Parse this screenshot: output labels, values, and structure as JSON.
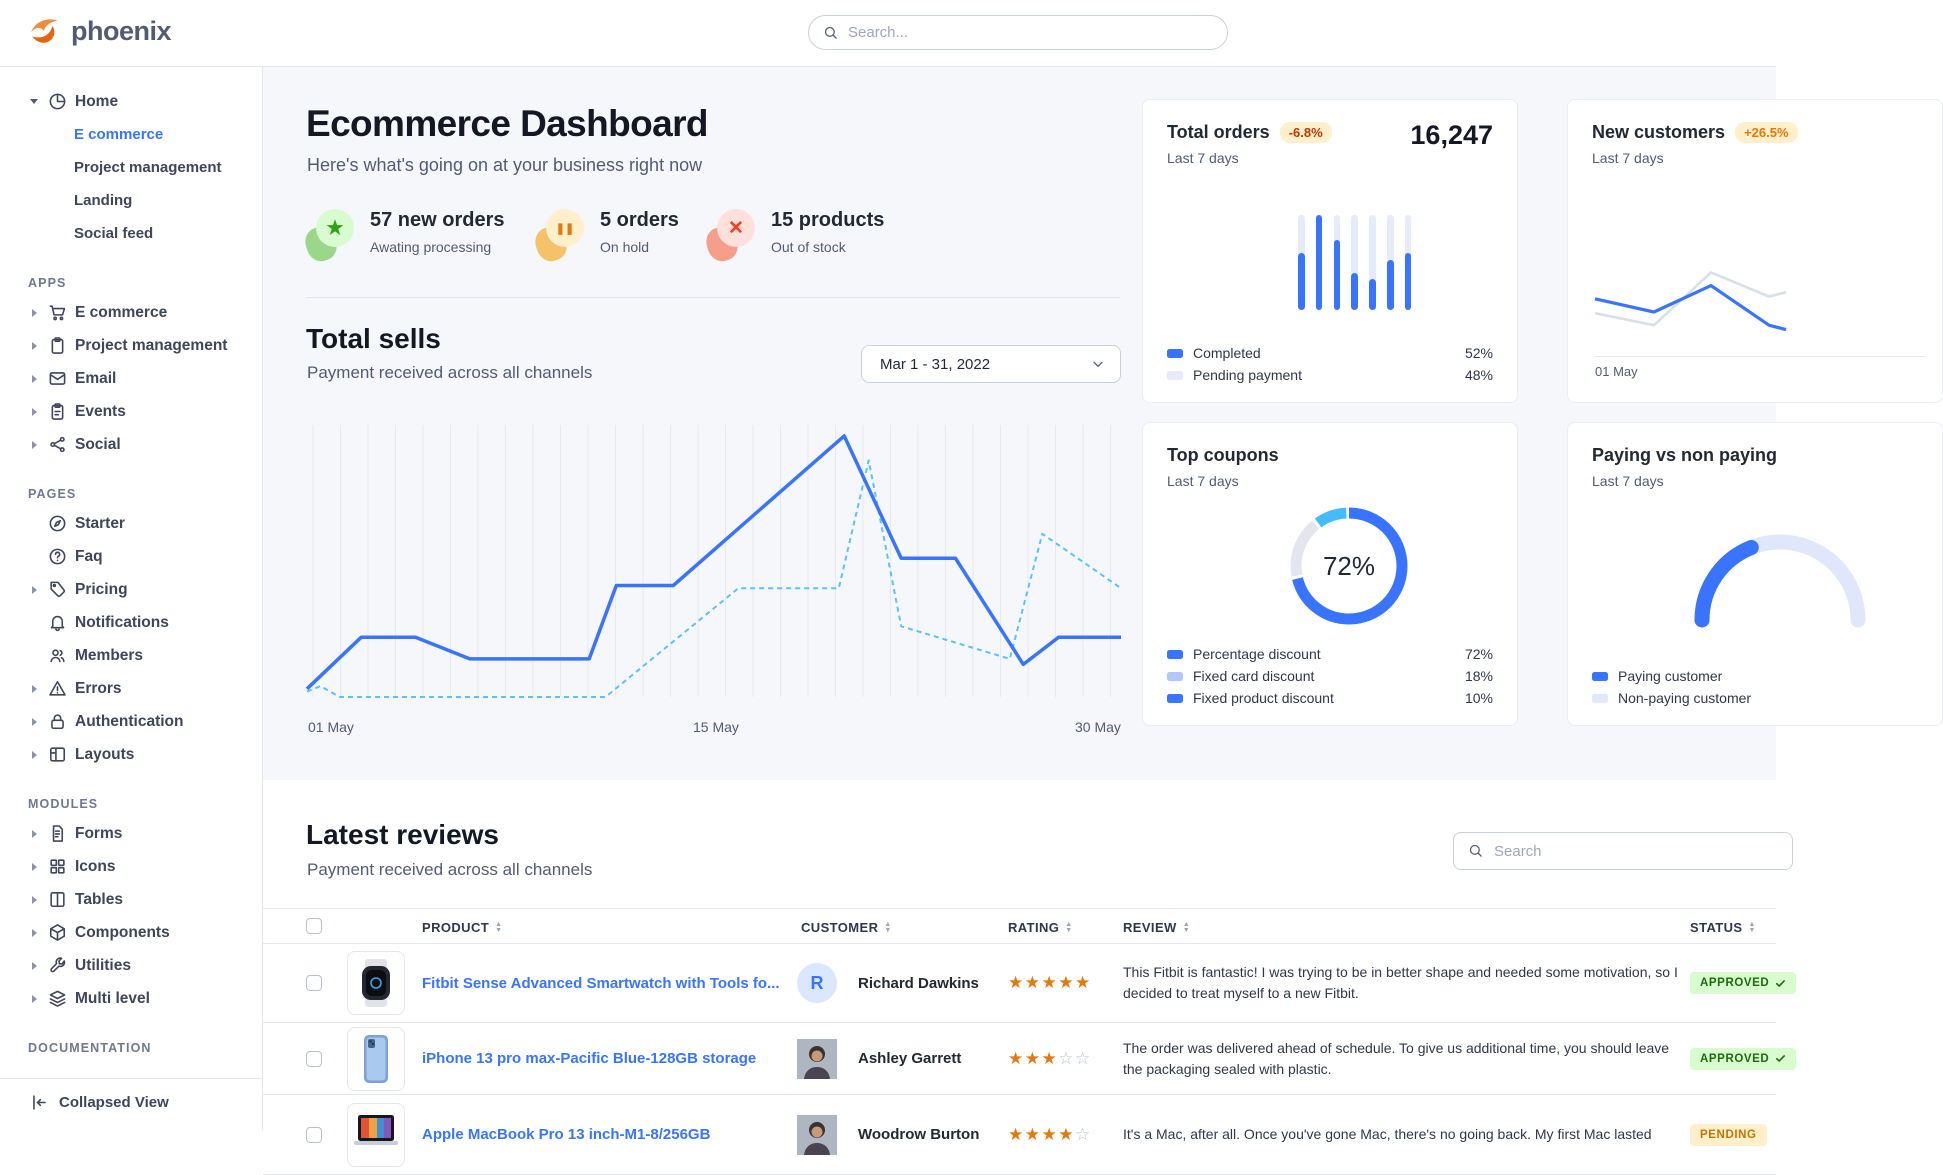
{
  "navbar": {
    "brand": "phoenix",
    "search_placeholder": "Search..."
  },
  "sidebar": {
    "home": {
      "label": "Home",
      "icon": "pie-icon",
      "subs": [
        {
          "label": "E commerce",
          "active": true
        },
        {
          "label": "Project management",
          "active": false
        },
        {
          "label": "Landing",
          "active": false
        },
        {
          "label": "Social feed",
          "active": false
        }
      ]
    },
    "sections": [
      {
        "label": "APPS",
        "items": [
          {
            "label": "E commerce",
            "icon": "cart-icon",
            "caret": true
          },
          {
            "label": "Project management",
            "icon": "clipboard-icon",
            "caret": true
          },
          {
            "label": "Email",
            "icon": "envelope-icon",
            "caret": true
          },
          {
            "label": "Events",
            "icon": "calendar-icon",
            "caret": true
          },
          {
            "label": "Social",
            "icon": "share-icon",
            "caret": true
          }
        ]
      },
      {
        "label": "PAGES",
        "items": [
          {
            "label": "Starter",
            "icon": "compass-icon",
            "caret": false
          },
          {
            "label": "Faq",
            "icon": "question-icon",
            "caret": false
          },
          {
            "label": "Pricing",
            "icon": "tag-icon",
            "caret": true
          },
          {
            "label": "Notifications",
            "icon": "bell-icon",
            "caret": false
          },
          {
            "label": "Members",
            "icon": "members-icon",
            "caret": false
          },
          {
            "label": "Errors",
            "icon": "warning-icon",
            "caret": true
          },
          {
            "label": "Authentication",
            "icon": "lock-icon",
            "caret": true
          },
          {
            "label": "Layouts",
            "icon": "layout-icon",
            "caret": true
          }
        ]
      },
      {
        "label": "MODULES",
        "items": [
          {
            "label": "Forms",
            "icon": "form-icon",
            "caret": true
          },
          {
            "label": "Icons",
            "icon": "grid-icon",
            "caret": true
          },
          {
            "label": "Tables",
            "icon": "table-icon",
            "caret": true
          },
          {
            "label": "Components",
            "icon": "box-icon",
            "caret": true
          },
          {
            "label": "Utilities",
            "icon": "wrench-icon",
            "caret": true
          },
          {
            "label": "Multi level",
            "icon": "layers-icon",
            "caret": true
          }
        ]
      },
      {
        "label": "DOCUMENTATION",
        "items": []
      }
    ],
    "footer": {
      "label": "Collapsed View",
      "icon": "collapse-icon"
    }
  },
  "hero": {
    "title": "Ecommerce Dashboard",
    "subtitle": "Here's what's going on at your business right now",
    "stats": [
      {
        "text": "57 new orders",
        "sub": "Awating processing",
        "kind": "new",
        "glyph": "star",
        "blob": "#9bd78a",
        "circle": "#d9fbd0",
        "glyph_color": "#31a212"
      },
      {
        "text": "5 orders",
        "sub": "On hold",
        "kind": "hold",
        "glyph": "pause",
        "blob": "#f5c26b",
        "circle": "#ffefca",
        "glyph_color": "#e5780b"
      },
      {
        "text": "15 products",
        "sub": "Out of stock",
        "kind": "stock",
        "glyph": "x",
        "blob": "#f59e8b",
        "circle": "#ffe0db",
        "glyph_color": "#fa3b1d"
      }
    ]
  },
  "total_sells": {
    "title": "Total sells",
    "subtitle": "Payment received across all channels",
    "date_range": "Mar 1 - 31, 2022"
  },
  "cards": {
    "total_orders": {
      "title": "Total orders",
      "badge": "-6.8%",
      "period": "Last 7 days",
      "value": "16,247"
    },
    "new_customers": {
      "title": "New customers",
      "badge": "+26.5%",
      "period": "Last 7 days",
      "x_tick": "01 May"
    },
    "top_coupons": {
      "title": "Top coupons",
      "period": "Last 7 days",
      "center_value": "72%"
    },
    "paying": {
      "title": "Paying vs non paying",
      "period": "Last 7 days"
    }
  },
  "chart_data": [
    {
      "id": "total-sells",
      "type": "line",
      "title": "Total sells",
      "x_ticks": [
        "01 May",
        "15 May",
        "30 May"
      ],
      "x_range_days": [
        1,
        31
      ],
      "ylim": [
        0,
        100
      ],
      "grid": "vertical-only",
      "legend": "none",
      "series": [
        {
          "name": "current",
          "style": "solid",
          "color": "#3874ff",
          "points": [
            [
              1,
              3
            ],
            [
              3,
              22
            ],
            [
              5,
              22
            ],
            [
              7,
              14
            ],
            [
              11.4,
              14
            ],
            [
              12.4,
              41
            ],
            [
              14.5,
              41
            ],
            [
              20.8,
              96
            ],
            [
              22.9,
              51
            ],
            [
              24.9,
              51
            ],
            [
              27.4,
              12
            ],
            [
              28.7,
              22
            ],
            [
              31,
              22
            ]
          ]
        },
        {
          "name": "previous",
          "style": "dashed",
          "color": "#5bc2fc",
          "points": [
            [
              1,
              2
            ],
            [
              1.5,
              4
            ],
            [
              2.2,
              0
            ],
            [
              12,
              0
            ],
            [
              16.9,
              40
            ],
            [
              20.6,
              40
            ],
            [
              21.7,
              87
            ],
            [
              22.9,
              26
            ],
            [
              26.9,
              14
            ],
            [
              28.1,
              60
            ],
            [
              31,
              40
            ]
          ]
        }
      ]
    },
    {
      "id": "total-orders",
      "type": "bar",
      "title": "Total orders",
      "values_pct_of_max": [
        60,
        100,
        74,
        39,
        33,
        53,
        60
      ],
      "legend": [
        {
          "label": "Completed",
          "value": "52%",
          "color": "#3874ff"
        },
        {
          "label": "Pending payment",
          "value": "48%",
          "color": "#e6ebfb"
        }
      ]
    },
    {
      "id": "new-customers",
      "type": "line",
      "title": "New customers",
      "x_tick": "01 May",
      "series": [
        {
          "name": "previous",
          "color": "#d8dfea",
          "values": [
            39,
            28,
            76,
            54,
            58
          ]
        },
        {
          "name": "current",
          "color": "#3874ff",
          "values": [
            52,
            40,
            64,
            28,
            24
          ]
        }
      ]
    },
    {
      "id": "top-coupons",
      "type": "donut",
      "title": "Top coupons",
      "center": "72%",
      "slices": [
        {
          "label": "Percentage discount",
          "value": 72,
          "arc_color": "#3874ff",
          "legend_color": "#3874ff"
        },
        {
          "label": "Fixed card discount",
          "value": 18,
          "arc_color": "#e3e6ed",
          "legend_color": "#b1c7ff"
        },
        {
          "label": "Fixed product discount",
          "value": 10,
          "arc_color": "#45bcf9",
          "legend_color": "#3874ff"
        }
      ]
    },
    {
      "id": "paying-gauge",
      "type": "gauge",
      "title": "Paying vs non paying",
      "paying_pct": 38,
      "legend": [
        {
          "label": "Paying customer",
          "color": "#3874ff"
        },
        {
          "label": "Non-paying customer",
          "color": "#e0e7fb"
        }
      ]
    }
  ],
  "reviews": {
    "title": "Latest reviews",
    "subtitle": "Payment received across all channels",
    "search_placeholder": "Search",
    "columns": [
      {
        "label": "PRODUCT"
      },
      {
        "label": "CUSTOMER"
      },
      {
        "label": "RATING"
      },
      {
        "label": "REVIEW"
      },
      {
        "label": "STATUS"
      }
    ],
    "rows": [
      {
        "product": "Fitbit Sense Advanced Smartwatch with Tools fo...",
        "thumb": "watch",
        "customer": "Richard Dawkins",
        "avatar": {
          "type": "initial",
          "initial": "R"
        },
        "rating": 5,
        "review": "This Fitbit is fantastic! I was trying to be in better shape and needed some motivation, so I decided to treat myself to a new Fitbit.",
        "status": {
          "label": "APPROVED",
          "type": "success"
        }
      },
      {
        "product": "iPhone 13 pro max-Pacific Blue-128GB storage",
        "thumb": "phone",
        "customer": "Ashley Garrett",
        "avatar": {
          "type": "photo"
        },
        "rating": 3,
        "review": "The order was delivered ahead of schedule. To give us additional time, you should leave the packaging sealed with plastic.",
        "status": {
          "label": "APPROVED",
          "type": "success"
        }
      },
      {
        "product": "Apple MacBook Pro 13 inch-M1-8/256GB",
        "thumb": "laptop",
        "customer": "Woodrow Burton",
        "avatar": {
          "type": "photo"
        },
        "rating": 4,
        "review": "It's a Mac, after all. Once you've gone Mac, there's no going back. My first Mac lasted",
        "status": {
          "label": "PENDING",
          "type": "warning"
        }
      }
    ]
  }
}
